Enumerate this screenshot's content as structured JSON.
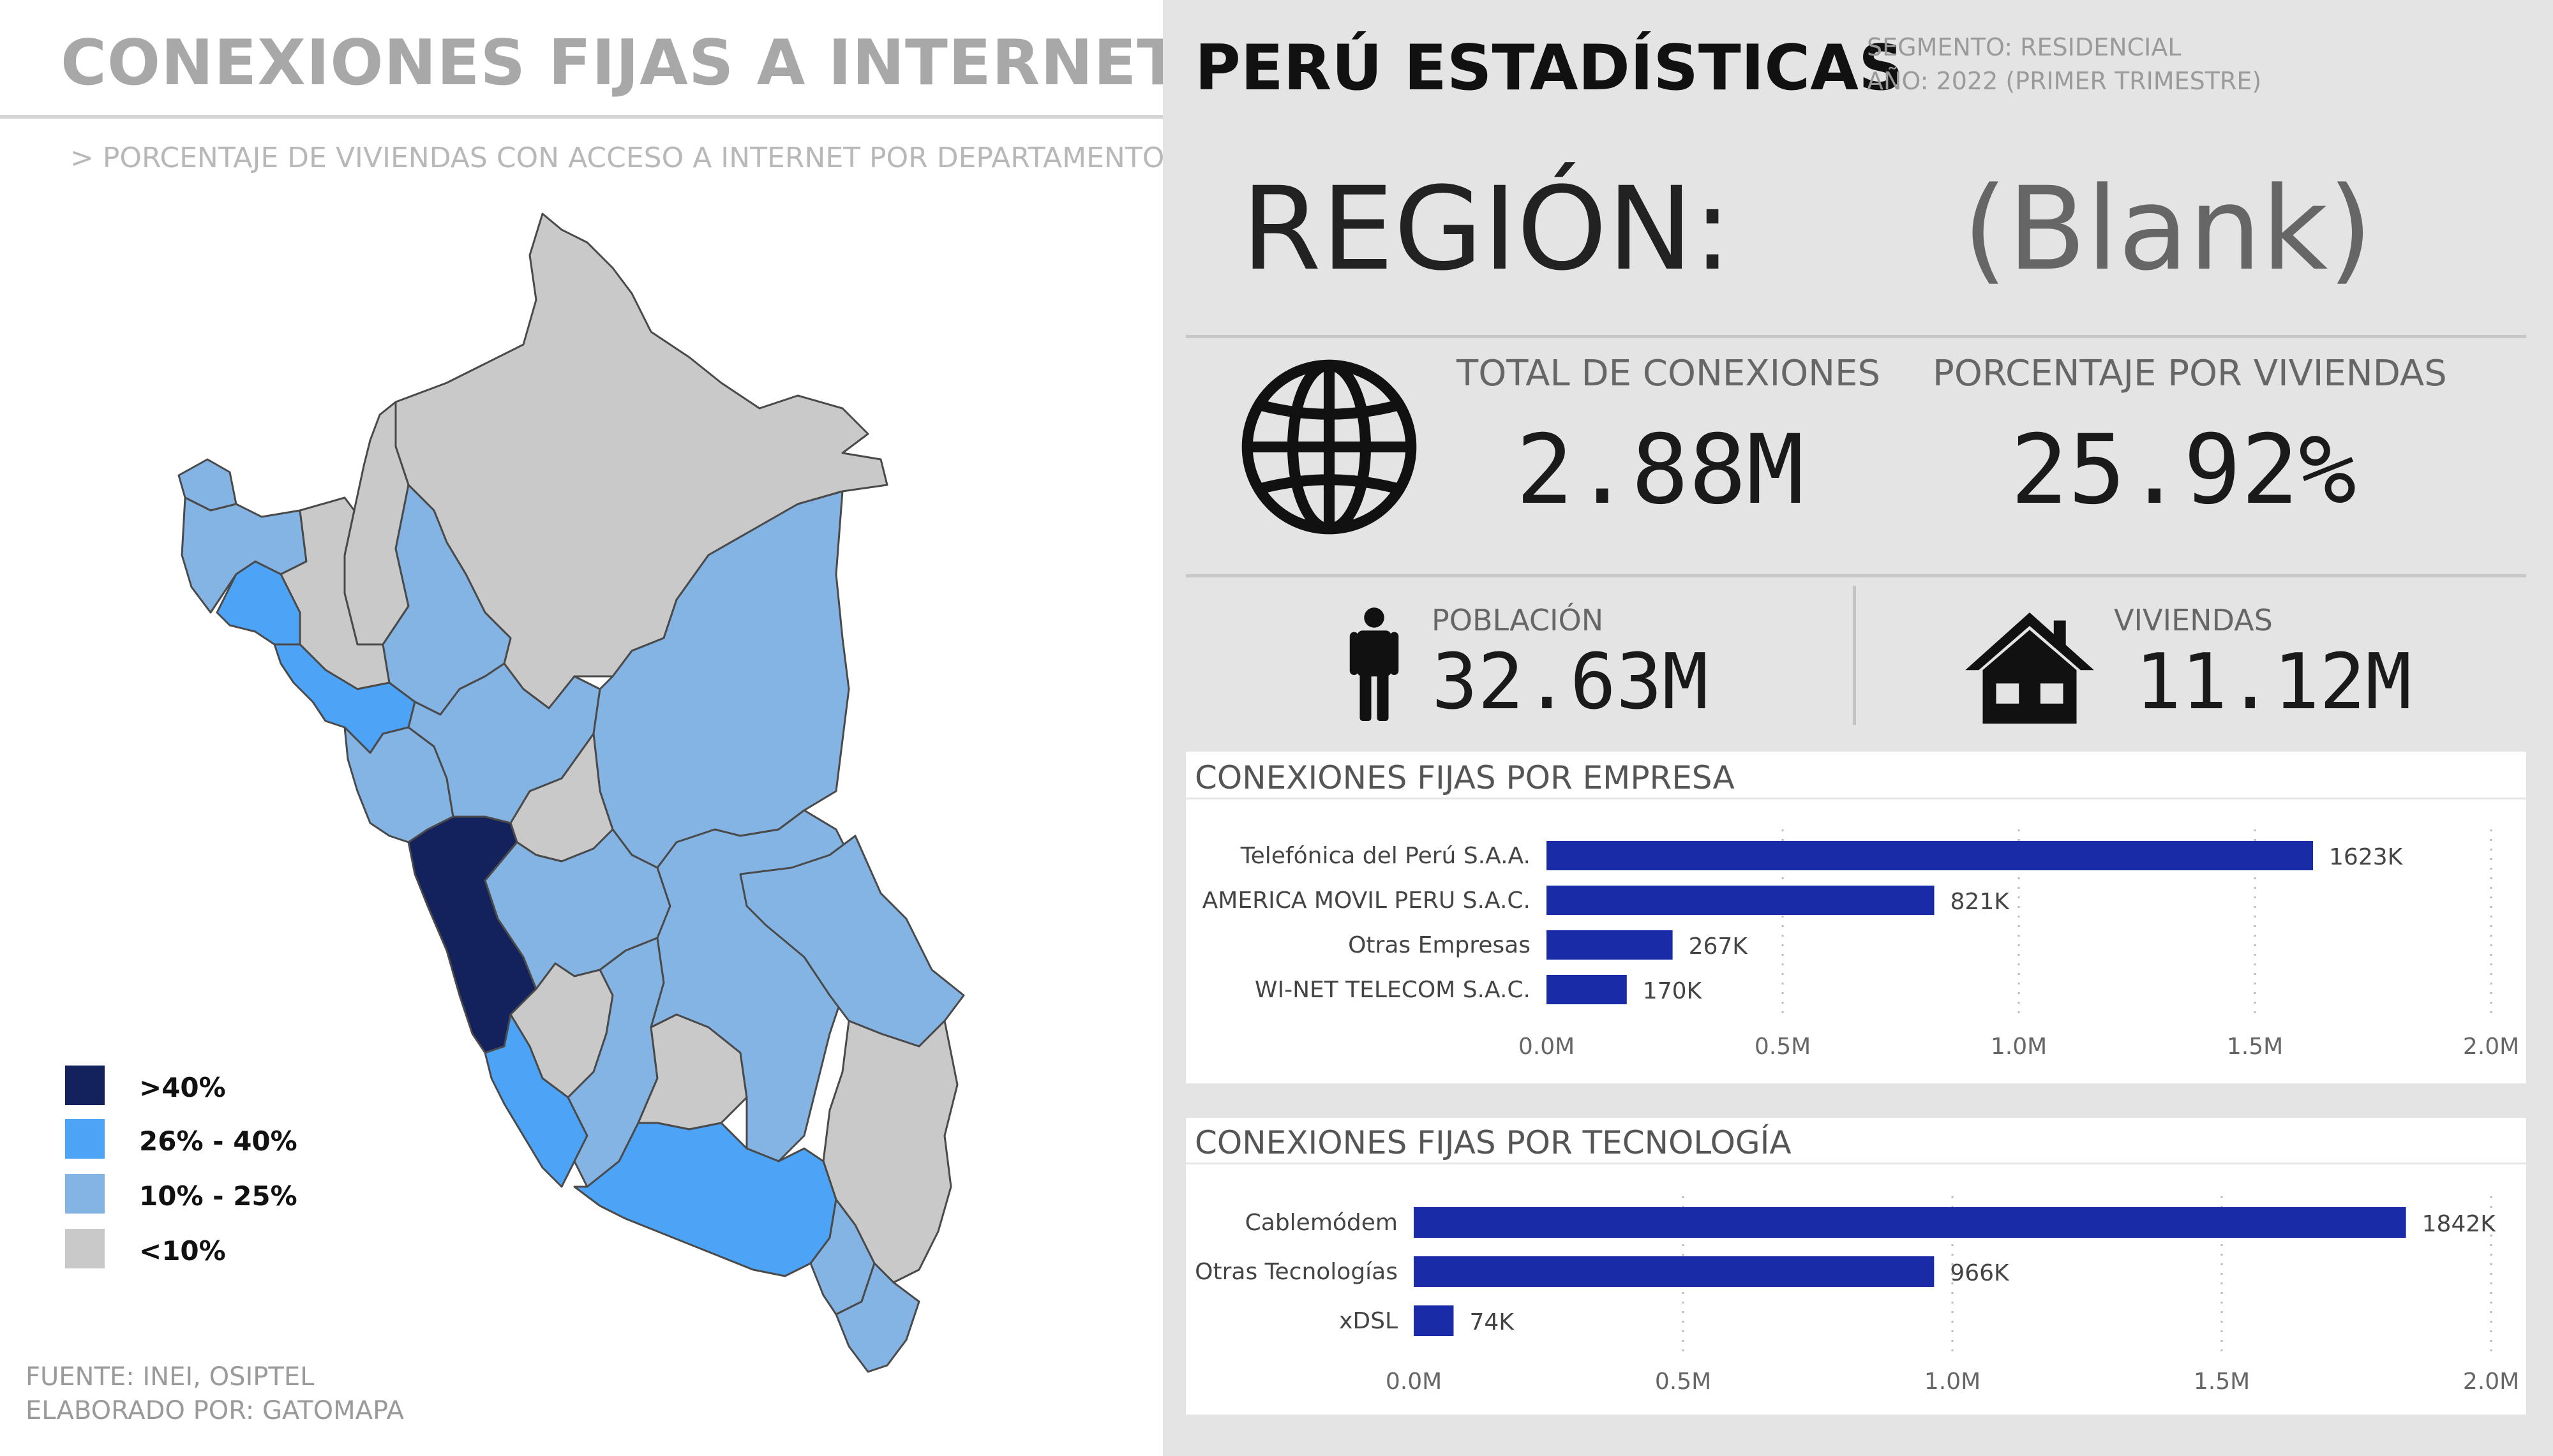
{
  "left": {
    "title": "CONEXIONES FIJAS A INTERNET",
    "subtitle": "> PORCENTAJE DE VIVIENDAS CON ACCESO A INTERNET POR DEPARTAMENTO",
    "legend": [
      {
        "label": ">40%",
        "color": "#13215c"
      },
      {
        "label": "26% - 40%",
        "color": "#4da3f5"
      },
      {
        "label": "10% - 25%",
        "color": "#84b4e4"
      },
      {
        "label": "<10%",
        "color": "#c9c9c9"
      }
    ],
    "footer": {
      "source": "FUENTE: INEI, OSIPTEL",
      "author": "ELABORADO POR: GATOMAPA"
    }
  },
  "right": {
    "title": "PERÚ ESTADÍSTICAS",
    "segment": "SEGMENTO: RESIDENCIAL",
    "year": "AÑO: 2022 (PRIMER TRIMESTRE)",
    "region_label": "REGIÓN:",
    "region_value": "(Blank)",
    "kpis": {
      "total_label": "TOTAL DE CONEXIONES",
      "total_value": "2.88M",
      "pct_label": "PORCENTAJE POR VIVIENDAS",
      "pct_value": "25.92%",
      "pop_label": "POBLACIÓN",
      "pop_value": "32.63M",
      "homes_label": "VIVIENDAS",
      "homes_value": "11.12M"
    },
    "icons": [
      "globe-icon",
      "person-icon",
      "house-icon"
    ]
  },
  "chart_data": [
    {
      "type": "bar",
      "orientation": "horizontal",
      "title": "CONEXIONES FIJAS POR EMPRESA",
      "categories": [
        "Telefónica del Perú S.A.A.",
        "AMERICA MOVIL PERU S.A.C.",
        "Otras Empresas",
        "WI-NET TELECOM S.A.C."
      ],
      "values": [
        1623000,
        821000,
        267000,
        170000
      ],
      "data_labels": [
        "1623K",
        "821K",
        "267K",
        "170K"
      ],
      "xlim": [
        0,
        2000000
      ],
      "ticks": [
        "0.0M",
        "0.5M",
        "1.0M",
        "1.5M",
        "2.0M"
      ],
      "bar_color": "#1a2ba8",
      "grid": true
    },
    {
      "type": "bar",
      "orientation": "horizontal",
      "title": "CONEXIONES FIJAS POR TECNOLOGÍA",
      "categories": [
        "Cablemódem",
        "Otras Tecnologías",
        "xDSL"
      ],
      "values": [
        1842000,
        966000,
        74000
      ],
      "data_labels": [
        "1842K",
        "966K",
        "74K"
      ],
      "xlim": [
        0,
        2000000
      ],
      "ticks": [
        "0.0M",
        "0.5M",
        "1.0M",
        "1.5M",
        "2.0M"
      ],
      "bar_color": "#1a2ba8",
      "grid": true
    }
  ]
}
